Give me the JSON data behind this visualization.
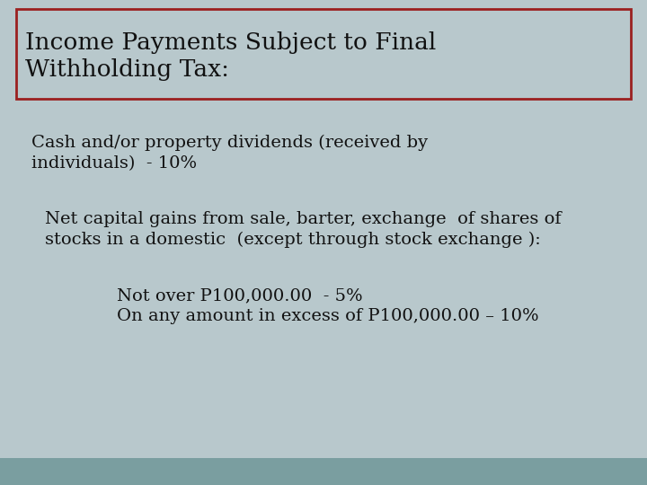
{
  "bg_color": "#b8c8cc",
  "bottom_bar_color": "#7a9ea0",
  "title_box_border_color": "#9b2020",
  "title_box_fill": "#b8c8cc",
  "title_text_line1": "Income Payments Subject to Final",
  "title_text_line2": "Withholding Tax:",
  "title_fontsize": 19,
  "body_fontsize": 14,
  "text_color": "#111111",
  "font_family": "serif",
  "line1a": "Cash and/or property dividends (received by",
  "line1b": "individuals)  - 10%",
  "line2a": "Net capital gains from sale, barter, exchange  of shares of",
  "line2b": "stocks in a domestic  (except through stock exchange ):",
  "line3a": "Not over P100,000.00  - 5%",
  "line3b": "On any amount in excess of P100,000.00 – 10%"
}
